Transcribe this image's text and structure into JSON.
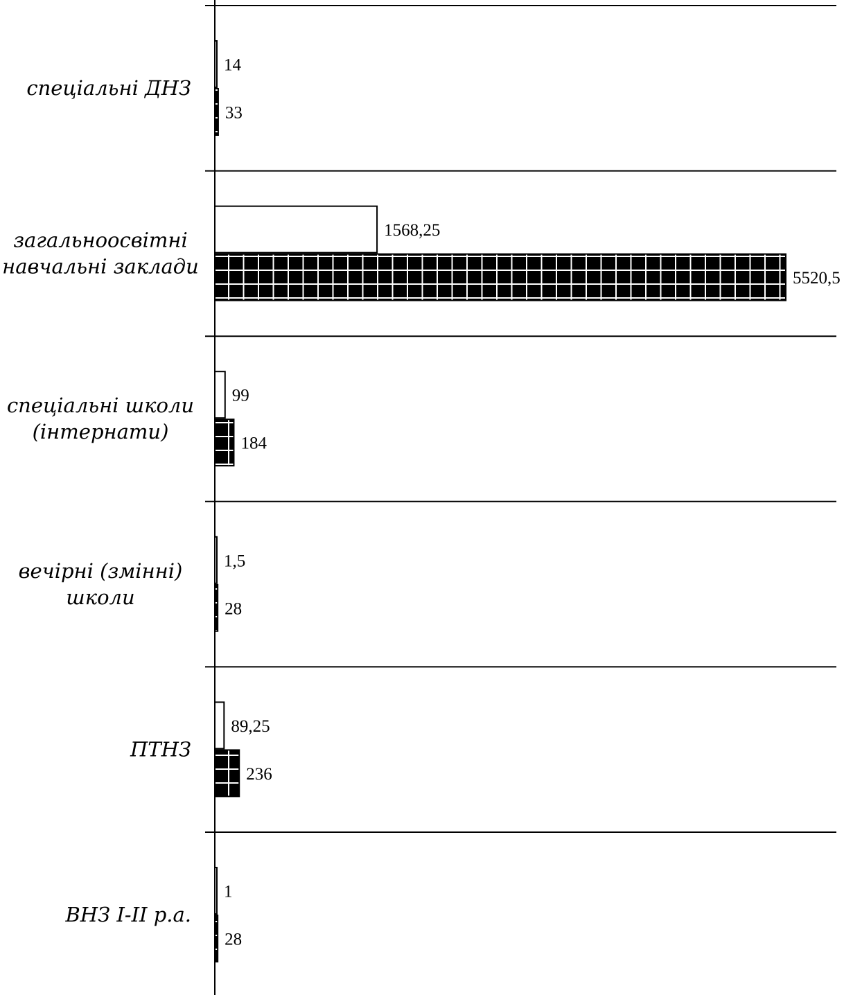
{
  "chart_data": {
    "type": "bar",
    "orientation": "horizontal",
    "categories": [
      [
        "спеціальні ДНЗ"
      ],
      [
        "загальноосвітні",
        "навчальні заклади"
      ],
      [
        "спеціальні школи",
        "(інтернати)"
      ],
      [
        "вечірні (змінні)",
        "школи"
      ],
      [
        "ПТНЗ"
      ],
      [
        "ВНЗ І-ІІ р.а."
      ]
    ],
    "series": [
      {
        "values": [
          14,
          1568.25,
          99,
          1.5,
          89.25,
          1
        ],
        "labels": [
          "14",
          "1568,25",
          "99",
          "1,5",
          "89,25",
          "1"
        ],
        "fill": "#ffffff",
        "pattern": "none"
      },
      {
        "values": [
          33,
          5520.5,
          184,
          28,
          236,
          28
        ],
        "labels": [
          "33",
          "5520,5",
          "184",
          "28",
          "236",
          "28"
        ],
        "fill": "#000000",
        "pattern": "white-grid"
      }
    ],
    "xlim": [
      0,
      5520.5
    ],
    "grid": "horizontal separators between categories",
    "legend": "none"
  }
}
